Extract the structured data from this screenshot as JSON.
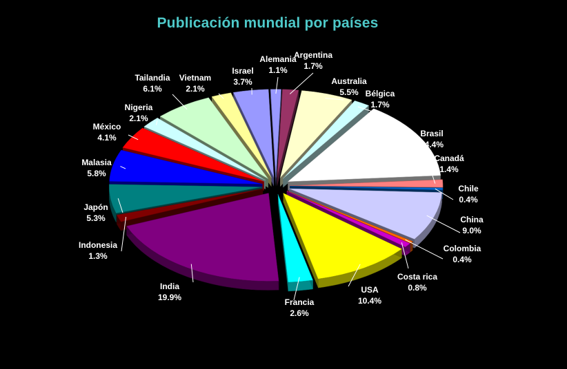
{
  "chart_data": {
    "type": "pie",
    "style": "exploded-3d",
    "title": "Publicación mundial por países",
    "title_color": "#4EC9C9",
    "label_color": "#FFFFFF",
    "background": "#000000",
    "slices": [
      {
        "name": "Alemania",
        "percent_label": "1.1%",
        "value": 1.1,
        "color": "#9999FF"
      },
      {
        "name": "Argentina",
        "percent_label": "1.7%",
        "value": 1.7,
        "color": "#993366"
      },
      {
        "name": "Australia",
        "percent_label": "5.5%",
        "value": 5.5,
        "color": "#FFFFCC"
      },
      {
        "name": "Bélgica",
        "percent_label": "1.7%",
        "value": 1.7,
        "color": "#CCFFFF"
      },
      {
        "name": "Brasil",
        "percent_label": "14.4%",
        "value": 14.4,
        "color": "#FFFFFF"
      },
      {
        "name": "Canadá",
        "percent_label": "1.4%",
        "value": 1.4,
        "color": "#FF8080"
      },
      {
        "name": "Chile",
        "percent_label": "0.4%",
        "value": 0.4,
        "color": "#0066CC"
      },
      {
        "name": "China",
        "percent_label": "9.0%",
        "value": 9.0,
        "color": "#CCCCFF"
      },
      {
        "name": "Colombia",
        "percent_label": "0.4%",
        "value": 0.4,
        "color": "#FF6600"
      },
      {
        "name": "Costa rica",
        "percent_label": "0.8%",
        "value": 0.8,
        "color": "#CC00CC"
      },
      {
        "name": "USA",
        "percent_label": "10.4%",
        "value": 10.4,
        "color": "#FFFF00"
      },
      {
        "name": "Francia",
        "percent_label": "2.6%",
        "value": 2.6,
        "color": "#00FFFF"
      },
      {
        "name": "India",
        "percent_label": "19.9%",
        "value": 19.9,
        "color": "#800080"
      },
      {
        "name": "Indonesia",
        "percent_label": "1.3%",
        "value": 1.3,
        "color": "#800000"
      },
      {
        "name": "Japón",
        "percent_label": "5.3%",
        "value": 5.3,
        "color": "#008080"
      },
      {
        "name": "Malasia",
        "percent_label": "5.8%",
        "value": 5.8,
        "color": "#0000FF"
      },
      {
        "name": "México",
        "percent_label": "4.1%",
        "value": 4.1,
        "color": "#FF0000"
      },
      {
        "name": "Nigeria",
        "percent_label": "2.1%",
        "value": 2.1,
        "color": "#CCFFFF"
      },
      {
        "name": "Tailandia",
        "percent_label": "6.1%",
        "value": 6.1,
        "color": "#CCFFCC"
      },
      {
        "name": "Vietnam",
        "percent_label": "2.1%",
        "value": 2.1,
        "color": "#FFFF99"
      },
      {
        "name": "Israel",
        "percent_label": "3.7%",
        "value": 3.7,
        "color": "#9999FF"
      }
    ]
  }
}
